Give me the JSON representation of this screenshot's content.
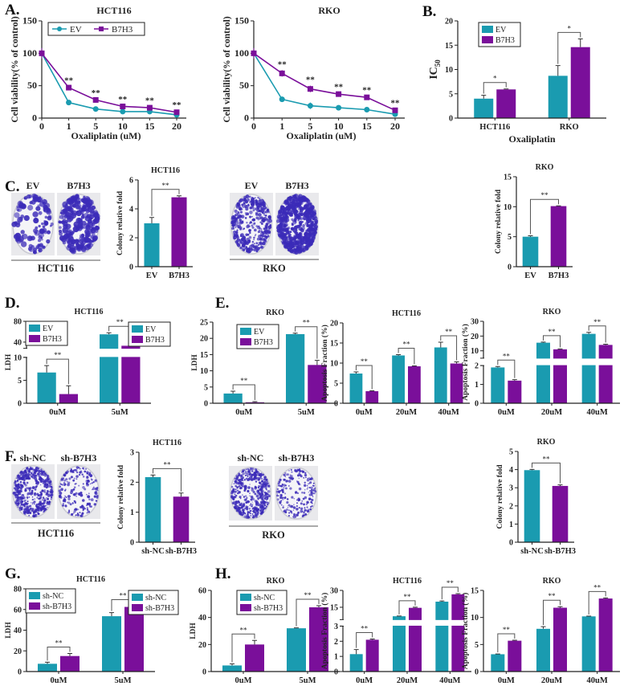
{
  "colors": {
    "series1": "#1a9bb0",
    "series2": "#7a0f9a",
    "significance": "#555555",
    "stain": "#3b2bb8"
  },
  "panels": {
    "A": "A.",
    "B": "B.",
    "C": "C.",
    "D": "D.",
    "E": "E.",
    "F": "F.",
    "G": "G.",
    "H": "H."
  },
  "images": [
    {
      "id": "C-HCT116",
      "conditions": [
        "EV",
        "B7H3"
      ],
      "cell_line": "HCT116"
    },
    {
      "id": "C-RKO",
      "conditions": [
        "EV",
        "B7H3"
      ],
      "cell_line": "RKO"
    },
    {
      "id": "F-HCT116",
      "conditions": [
        "sh-NC",
        "sh-B7H3"
      ],
      "cell_line": "HCT116"
    },
    {
      "id": "F-RKO",
      "conditions": [
        "sh-NC",
        "sh-B7H3"
      ],
      "cell_line": "RKO"
    }
  ],
  "chart_data": [
    {
      "id": "A-HCT116",
      "type": "line",
      "title": "HCT116",
      "xlabel": "Oxaliplatin (uM)",
      "ylabel": "Cell viability(% of control)",
      "categories": [
        "0",
        "1",
        "5",
        "10",
        "15",
        "20"
      ],
      "ylim": [
        0,
        150
      ],
      "yticks": [
        0,
        50,
        100,
        150
      ],
      "legend": true,
      "series": [
        {
          "name": "EV",
          "values": [
            100,
            24,
            14,
            10,
            10,
            5
          ],
          "errors": [
            8,
            2,
            2,
            1,
            1,
            1
          ]
        },
        {
          "name": "B7H3",
          "values": [
            100,
            47,
            28,
            18,
            16,
            9
          ],
          "errors": [
            8,
            2,
            2,
            2,
            2,
            2
          ]
        }
      ],
      "sig": [
        "",
        "**",
        "**",
        "**",
        "**",
        "**"
      ]
    },
    {
      "id": "A-RKO",
      "type": "line",
      "title": "RKO",
      "xlabel": "Oxaliplatin  (uM)",
      "ylabel": "Cell viability(% of control)",
      "categories": [
        "0",
        "1",
        "5",
        "10",
        "15",
        "20"
      ],
      "ylim": [
        0,
        150
      ],
      "yticks": [
        0,
        50,
        100,
        150
      ],
      "legend": false,
      "series": [
        {
          "name": "EV",
          "values": [
            100,
            29,
            19,
            16,
            13,
            6
          ],
          "errors": [
            8,
            2,
            5,
            1,
            1,
            1
          ]
        },
        {
          "name": "B7H3",
          "values": [
            100,
            69,
            45,
            37,
            32,
            12
          ],
          "errors": [
            8,
            5,
            5,
            2,
            2,
            2
          ]
        }
      ],
      "sig": [
        "",
        "**",
        "**",
        "**",
        "**",
        "**"
      ]
    },
    {
      "id": "B",
      "type": "bar",
      "title": "",
      "xlabel": "Oxaliplatin",
      "ylabel": "IC",
      "ylabel_sub": "50",
      "categories": [
        "HCT116",
        "RKO"
      ],
      "ylim": [
        0,
        20
      ],
      "yticks": [
        0,
        5,
        10,
        15,
        20
      ],
      "legend": true,
      "series": [
        {
          "name": "EV",
          "values": [
            4.0,
            8.7
          ],
          "errors": [
            0.7,
            2.1
          ]
        },
        {
          "name": "B7H3",
          "values": [
            5.9,
            14.6
          ],
          "errors": [
            0.1,
            1.7
          ]
        }
      ],
      "sig": [
        "*",
        "*"
      ]
    },
    {
      "id": "C-HCT116",
      "type": "bar",
      "title": "HCT116",
      "xlabel": "",
      "ylabel": "Colony relative fold",
      "categories": [
        "EV",
        "B7H3"
      ],
      "ylim": [
        0,
        6
      ],
      "yticks": [
        0,
        2,
        4,
        6
      ],
      "legend": false,
      "series": [
        {
          "values": [
            3.0,
            4.8
          ],
          "errors": [
            0.4,
            0.1
          ]
        }
      ],
      "sig": [
        "**"
      ]
    },
    {
      "id": "C-RKO",
      "type": "bar",
      "title": "RKO",
      "xlabel": "",
      "ylabel": "Colony relative fold",
      "categories": [
        "EV",
        "B7H3"
      ],
      "ylim": [
        0,
        15
      ],
      "yticks": [
        0,
        5,
        10,
        15
      ],
      "legend": false,
      "series": [
        {
          "values": [
            5.0,
            10.1
          ],
          "errors": [
            0.15,
            0.05
          ]
        }
      ],
      "sig": [
        "**"
      ]
    },
    {
      "id": "D-HCT116",
      "type": "bar",
      "title": "HCT116",
      "xlabel": "",
      "ylabel": "LDH",
      "categories": [
        "0uM",
        "5uM"
      ],
      "y_segments": [
        [
          0,
          10
        ],
        [
          28,
          80
        ]
      ],
      "yticks": [
        0,
        5,
        10,
        40,
        80
      ],
      "legend": true,
      "series": [
        {
          "name": "EV",
          "values": [
            6.7,
            55
          ],
          "errors": [
            1.5,
            3
          ]
        },
        {
          "name": "B7H3",
          "values": [
            2.0,
            33
          ],
          "errors": [
            1.8,
            4
          ]
        }
      ],
      "sig": [
        "**",
        "**"
      ]
    },
    {
      "id": "D-RKO",
      "type": "bar",
      "title": "RKO",
      "xlabel": "",
      "ylabel": "LDH",
      "categories": [
        "0uM",
        "5uM"
      ],
      "ylim": [
        0,
        25
      ],
      "yticks": [
        0,
        5,
        10,
        15,
        20,
        25
      ],
      "legend": true,
      "series": [
        {
          "name": "EV",
          "values": [
            3.0,
            21.3
          ],
          "errors": [
            0.7,
            0.3
          ]
        },
        {
          "name": "B7H3",
          "values": [
            0.3,
            11.8
          ],
          "errors": [
            0.2,
            1.4
          ]
        }
      ],
      "sig": [
        "**",
        "**"
      ]
    },
    {
      "id": "E-HCT116",
      "type": "bar",
      "title": "HCT116",
      "xlabel": "",
      "ylabel": "Apoptosis Fraction (%)",
      "categories": [
        "0uM",
        "20uM",
        "40uM"
      ],
      "ylim": [
        0,
        20
      ],
      "yticks": [
        0,
        5,
        10,
        15,
        20
      ],
      "legend": true,
      "series": [
        {
          "name": "EV",
          "values": [
            7.4,
            11.9,
            13.9
          ],
          "errors": [
            0.4,
            0.2,
            1.3
          ]
        },
        {
          "name": "B7H3",
          "values": [
            3.0,
            9.2,
            9.9
          ],
          "errors": [
            0.1,
            0.1,
            0.4
          ]
        }
      ],
      "sig": [
        "**",
        "**",
        "**"
      ]
    },
    {
      "id": "E-RKO",
      "type": "bar",
      "title": "RKO",
      "xlabel": "",
      "ylabel": "Apoptosis Fraction (%)",
      "categories": [
        "0uM",
        "20uM",
        "40uM"
      ],
      "y_segments": [
        [
          0,
          2
        ],
        [
          5,
          30
        ]
      ],
      "yticks": [
        0,
        1,
        2,
        10,
        20,
        30
      ],
      "legend": false,
      "series": [
        {
          "name": "EV",
          "values": [
            1.9,
            15.5,
            21.5
          ],
          "errors": [
            0.05,
            0.4,
            1.0
          ]
        },
        {
          "name": "B7H3",
          "values": [
            1.2,
            11,
            14
          ],
          "errors": [
            0.05,
            0.3,
            0.5
          ]
        }
      ],
      "sig": [
        "**",
        "**",
        "**"
      ]
    },
    {
      "id": "F-HCT116",
      "type": "bar",
      "title": "HCT116",
      "xlabel": "",
      "ylabel": "Colony relative fold",
      "categories": [
        "sh-NC",
        "sh-B7H3"
      ],
      "ylim": [
        0,
        3
      ],
      "yticks": [
        0,
        1,
        2,
        3
      ],
      "legend": false,
      "series": [
        {
          "values": [
            2.17,
            1.52
          ],
          "errors": [
            0.07,
            0.12
          ]
        }
      ],
      "sig": [
        "**"
      ]
    },
    {
      "id": "F-RKO",
      "type": "bar",
      "title": "RKO",
      "xlabel": "",
      "ylabel": "Colony relative fold",
      "categories": [
        "sh-NC",
        "sh-B7H3"
      ],
      "ylim": [
        0,
        5
      ],
      "yticks": [
        0,
        1,
        2,
        3,
        4,
        5
      ],
      "legend": false,
      "series": [
        {
          "values": [
            3.97,
            3.1
          ],
          "errors": [
            0.04,
            0.06
          ]
        }
      ],
      "sig": [
        "**"
      ]
    },
    {
      "id": "G-HCT116",
      "type": "bar",
      "title": "HCT116",
      "xlabel": "",
      "ylabel": "LDH",
      "categories": [
        "0uM",
        "5uM"
      ],
      "ylim": [
        0,
        80
      ],
      "yticks": [
        0,
        20,
        40,
        60,
        80
      ],
      "legend": true,
      "series": [
        {
          "name": "sh-NC",
          "values": [
            7.5,
            53.5
          ],
          "errors": [
            1.5,
            3.5
          ]
        },
        {
          "name": "sh-B7H3",
          "values": [
            15,
            62.5
          ],
          "errors": [
            2.5,
            0.8
          ]
        }
      ],
      "sig": [
        "**",
        "**"
      ]
    },
    {
      "id": "G-RKO",
      "type": "bar",
      "title": "RKO",
      "xlabel": "",
      "ylabel": "LDH",
      "categories": [
        "0uM",
        "5uM"
      ],
      "ylim": [
        0,
        60
      ],
      "yticks": [
        0,
        20,
        40,
        60
      ],
      "legend": true,
      "series": [
        {
          "name": "sh-NC",
          "values": [
            4.5,
            32
          ],
          "errors": [
            1.2,
            0.3
          ]
        },
        {
          "name": "sh-B7H3",
          "values": [
            20,
            47.5
          ],
          "errors": [
            3,
            1.2
          ]
        }
      ],
      "sig": [
        "**",
        "**"
      ]
    },
    {
      "id": "H-HCT116",
      "type": "bar",
      "title": "HCT116",
      "xlabel": "",
      "ylabel": "Apoptosis Fraction (%)",
      "categories": [
        "0uM",
        "20uM",
        "40uM"
      ],
      "y_segments": [
        [
          0,
          3
        ],
        [
          4,
          30
        ]
      ],
      "yticks": [
        0,
        1,
        2,
        3,
        15,
        30
      ],
      "legend": true,
      "series": [
        {
          "name": "sh-NC",
          "values": [
            1.15,
            7,
            20
          ],
          "errors": [
            0.3,
            0.2,
            0.6
          ]
        },
        {
          "name": "sh-B7H3",
          "values": [
            2.1,
            14.5,
            26.5
          ],
          "errors": [
            0.05,
            0.6,
            0.6
          ]
        }
      ],
      "sig": [
        "**",
        "**",
        "**"
      ]
    },
    {
      "id": "H-RKO",
      "type": "bar",
      "title": "RKO",
      "xlabel": "",
      "ylabel": "Apoptosis Fraction (%)",
      "categories": [
        "0uM",
        "20uM",
        "40uM"
      ],
      "ylim": [
        0,
        15
      ],
      "yticks": [
        0,
        5,
        10,
        15
      ],
      "legend": false,
      "series": [
        {
          "name": "sh-NC",
          "values": [
            3.2,
            7.9,
            10.2
          ],
          "errors": [
            0.05,
            0.4,
            0.05
          ]
        },
        {
          "name": "sh-B7H3",
          "values": [
            5.7,
            11.8,
            13.5
          ],
          "errors": [
            0.1,
            0.2,
            0.1
          ]
        }
      ],
      "sig": [
        "**",
        "**",
        "**"
      ]
    }
  ]
}
